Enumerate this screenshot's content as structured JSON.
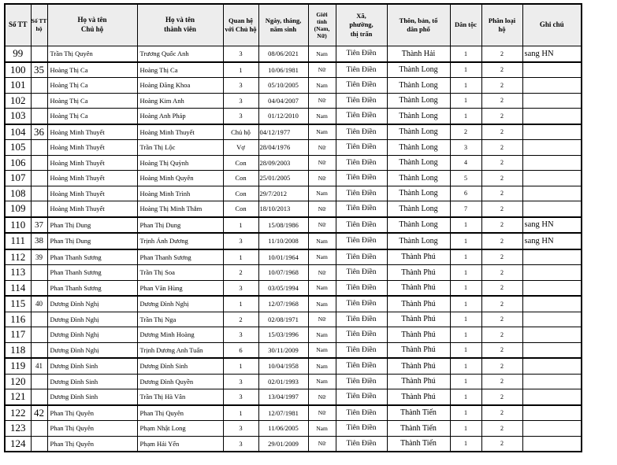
{
  "colors": {
    "header_bg": "#ededed",
    "border": "#000000",
    "text": "#000000",
    "page_bg": "#ffffff"
  },
  "table": {
    "headers": [
      {
        "key": "stt",
        "label": "Số TT"
      },
      {
        "key": "stt_ho",
        "label": "Số TT\nhộ"
      },
      {
        "key": "chu_ho",
        "label": "Họ và tên\nChủ hộ"
      },
      {
        "key": "thanh_vien",
        "label": "Họ và tên\nthành viên"
      },
      {
        "key": "quan_he",
        "label": "Quan hệ\nvới Chủ hộ"
      },
      {
        "key": "ngay_sinh",
        "label": "Ngày, tháng,\nnăm sinh"
      },
      {
        "key": "gioi_tinh",
        "label": "Giới\ntính\n(Nam,\nNữ)"
      },
      {
        "key": "xa",
        "label": "Xã,\nphường,\nthị trấn"
      },
      {
        "key": "thon",
        "label": "Thôn, bản, tổ\ndân phố"
      },
      {
        "key": "dan_toc",
        "label": "Dân tộc"
      },
      {
        "key": "phan_loai",
        "label": "Phân loại\nhộ"
      },
      {
        "key": "ghi_chu",
        "label": "Ghi chú"
      }
    ],
    "rows": [
      {
        "stt": "99",
        "stt_ho": "",
        "chu_ho": "Trần Thị Quyên",
        "thanh_vien": "Trương Quốc Anh",
        "quan_he": "3",
        "ngay_sinh": "08/06/2021",
        "gioi_tinh": "Nam",
        "xa": "Tiên Điền",
        "thon": "Thành Hải",
        "dan_toc": "1",
        "phan_loai": "2",
        "ghi_chu": "sang HN",
        "hh_start": false
      },
      {
        "stt": "100",
        "stt_ho": "35",
        "ho_sz": "lg",
        "chu_ho": "Hoàng Thị Ca",
        "thanh_vien": "Hoàng Thị Ca",
        "quan_he": "1",
        "ngay_sinh": "10/06/1981",
        "gioi_tinh": "Nữ",
        "xa": "Tiên Điền",
        "thon": "Thành Long",
        "dan_toc": "1",
        "phan_loai": "2",
        "ghi_chu": "",
        "hh_start": true
      },
      {
        "stt": "101",
        "stt_ho": "",
        "chu_ho": "Hoàng Thị Ca",
        "thanh_vien": "Hoàng Đăng Khoa",
        "quan_he": "3",
        "ngay_sinh": "05/10/2005",
        "gioi_tinh": "Nam",
        "xa": "Tiên Điền",
        "thon": "Thành Long",
        "dan_toc": "1",
        "phan_loai": "2",
        "ghi_chu": "",
        "hh_start": false
      },
      {
        "stt": "102",
        "stt_ho": "",
        "chu_ho": "Hoàng Thị Ca",
        "thanh_vien": "Hoàng Kim Anh",
        "quan_he": "3",
        "ngay_sinh": "04/04/2007",
        "gioi_tinh": "Nữ",
        "xa": "Tiên Điền",
        "thon": "Thành Long",
        "dan_toc": "1",
        "phan_loai": "2",
        "ghi_chu": "",
        "hh_start": false
      },
      {
        "stt": "103",
        "stt_ho": "",
        "chu_ho": "Hoàng Thị Ca",
        "thanh_vien": "Hoàng Anh Pháp",
        "quan_he": "3",
        "ngay_sinh": "01/12/2010",
        "gioi_tinh": "Nam",
        "xa": "Tiên Điền",
        "thon": "Thành Long",
        "dan_toc": "1",
        "phan_loai": "2",
        "ghi_chu": "",
        "hh_start": false
      },
      {
        "stt": "104",
        "stt_ho": "36",
        "ho_sz": "lg",
        "chu_ho": "Hoàng Minh Thuyết",
        "thanh_vien": "Hoàng Minh Thuyết",
        "quan_he": "Chủ hộ",
        "ngay_sinh": "04/12/1977",
        "date_align": "left",
        "gioi_tinh": "Nam",
        "xa": "Tiên Điền",
        "thon": "Thành Long",
        "dan_toc": "2",
        "phan_loai": "2",
        "ghi_chu": "",
        "hh_start": true
      },
      {
        "stt": "105",
        "stt_ho": "",
        "chu_ho": "Hoàng Minh Thuyết",
        "thanh_vien": "Trần Thị Lộc",
        "quan_he": "Vợ",
        "ngay_sinh": "28/04/1976",
        "date_align": "left",
        "gioi_tinh": "Nữ",
        "xa": "Tiên Điền",
        "thon": "Thành Long",
        "dan_toc": "3",
        "phan_loai": "2",
        "ghi_chu": "",
        "hh_start": false
      },
      {
        "stt": "106",
        "stt_ho": "",
        "chu_ho": "Hoàng Minh Thuyết",
        "thanh_vien": "Hoàng Thị Quỳnh",
        "quan_he": "Con",
        "ngay_sinh": "28/09/2003",
        "date_align": "left",
        "gioi_tinh": "Nữ",
        "xa": "Tiên Điền",
        "thon": "Thành Long",
        "dan_toc": "4",
        "phan_loai": "2",
        "ghi_chu": "",
        "hh_start": false
      },
      {
        "stt": "107",
        "stt_ho": "",
        "chu_ho": "Hoàng Minh Thuyết",
        "thanh_vien": "Hoàng Minh Quyên",
        "quan_he": "Con",
        "ngay_sinh": "25/01/2005",
        "date_align": "left",
        "gioi_tinh": "Nữ",
        "xa": "Tiên Điền",
        "thon": "Thành Long",
        "dan_toc": "5",
        "phan_loai": "2",
        "ghi_chu": "",
        "hh_start": false
      },
      {
        "stt": "108",
        "stt_ho": "",
        "chu_ho": "Hoàng Minh Thuyết",
        "thanh_vien": "Hoàng Minh Trình",
        "quan_he": "Con",
        "ngay_sinh": "29/7/2012",
        "date_align": "left",
        "gioi_tinh": "Nam",
        "xa": "Tiên Điền",
        "thon": "Thành Long",
        "dan_toc": "6",
        "phan_loai": "2",
        "ghi_chu": "",
        "hh_start": false
      },
      {
        "stt": "109",
        "stt_ho": "",
        "chu_ho": "Hoàng Minh Thuyết",
        "thanh_vien": "Hoàng Thị Minh Thắm",
        "quan_he": "Con",
        "ngay_sinh": "18/10/2013",
        "date_align": "left",
        "gioi_tinh": "Nữ",
        "xa": "Tiên Điền",
        "thon": "Thành Long",
        "dan_toc": "7",
        "phan_loai": "2",
        "ghi_chu": "",
        "hh_start": false
      },
      {
        "stt": "110",
        "stt_ho": "37",
        "ho_sz": "md",
        "chu_ho": "Phan Thị Dung",
        "thanh_vien": "Phan Thị Dung",
        "quan_he": "1",
        "ngay_sinh": "15/08/1986",
        "gioi_tinh": "Nữ",
        "xa": "Tiên Điền",
        "thon": "Thành Long",
        "dan_toc": "1",
        "phan_loai": "2",
        "ghi_chu": "sang HN",
        "hh_start": true
      },
      {
        "stt": "111",
        "stt_ho": "38",
        "ho_sz": "md",
        "chu_ho": "Phan Thị Dung",
        "thanh_vien": "Trịnh Ánh Dương",
        "quan_he": "3",
        "ngay_sinh": "11/10/2008",
        "gioi_tinh": "Nam",
        "xa": "Tiên Điền",
        "thon": "Thành Long",
        "dan_toc": "1",
        "phan_loai": "2",
        "ghi_chu": "sang HN",
        "hh_start": true
      },
      {
        "stt": "112",
        "stt_ho": "39",
        "ho_sz": "sm",
        "chu_ho": "Phan Thanh Sương",
        "thanh_vien": "Phan Thanh Sương",
        "quan_he": "1",
        "ngay_sinh": "10/01/1964",
        "gioi_tinh": "Nam",
        "xa": "Tiên Điền",
        "thon": "Thành Phú",
        "dan_toc": "1",
        "phan_loai": "2",
        "ghi_chu": "",
        "hh_start": true
      },
      {
        "stt": "113",
        "stt_ho": "",
        "chu_ho": "Phan Thanh Sương",
        "thanh_vien": "Trần Thị Soa",
        "quan_he": "2",
        "ngay_sinh": "10/07/1968",
        "gioi_tinh": "Nữ",
        "xa": "Tiên Điền",
        "thon": "Thành Phú",
        "dan_toc": "1",
        "phan_loai": "2",
        "ghi_chu": "",
        "hh_start": false
      },
      {
        "stt": "114",
        "stt_ho": "",
        "chu_ho": "Phan Thanh Sương",
        "thanh_vien": "Phan Văn Hùng",
        "quan_he": "3",
        "ngay_sinh": "03/05/1994",
        "gioi_tinh": "Nam",
        "xa": "Tiên Điền",
        "thon": "Thành Phú",
        "dan_toc": "1",
        "phan_loai": "2",
        "ghi_chu": "",
        "hh_start": false
      },
      {
        "stt": "115",
        "stt_ho": "40",
        "ho_sz": "sm",
        "chu_ho": "Dương Đình Nghị",
        "thanh_vien": "Dương Đình Nghị",
        "quan_he": "1",
        "ngay_sinh": "12/07/1968",
        "gioi_tinh": "Nam",
        "xa": "Tiên Điền",
        "thon": "Thành Phú",
        "dan_toc": "1",
        "phan_loai": "2",
        "ghi_chu": "",
        "hh_start": true
      },
      {
        "stt": "116",
        "stt_ho": "",
        "chu_ho": "Dương Đình Nghị",
        "thanh_vien": "Trần Thị Nga",
        "quan_he": "2",
        "ngay_sinh": "02/08/1971",
        "gioi_tinh": "Nữ",
        "xa": "Tiên Điền",
        "thon": "Thành Phú",
        "dan_toc": "1",
        "phan_loai": "2",
        "ghi_chu": "",
        "hh_start": false
      },
      {
        "stt": "117",
        "stt_ho": "",
        "chu_ho": "Dương Đình Nghị",
        "thanh_vien": "Dương Minh Hoàng",
        "quan_he": "3",
        "ngay_sinh": "15/03/1996",
        "gioi_tinh": "Nam",
        "xa": "Tiên Điền",
        "thon": "Thành Phú",
        "dan_toc": "1",
        "phan_loai": "2",
        "ghi_chu": "",
        "hh_start": false
      },
      {
        "stt": "118",
        "stt_ho": "",
        "chu_ho": "Dương Đình Nghị",
        "thanh_vien": "Trịnh Dương Anh Tuấn",
        "quan_he": "6",
        "ngay_sinh": "30/11/2009",
        "gioi_tinh": "Nam",
        "xa": "Tiên Điền",
        "thon": "Thành Phú",
        "dan_toc": "1",
        "phan_loai": "2",
        "ghi_chu": "",
        "hh_start": false
      },
      {
        "stt": "119",
        "stt_ho": "41",
        "ho_sz": "sm",
        "chu_ho": "Dương Đình Sinh",
        "thanh_vien": "Dương Đình Sinh",
        "quan_he": "1",
        "ngay_sinh": "10/04/1958",
        "gioi_tinh": "Nam",
        "xa": "Tiên Điền",
        "thon": "Thành Phú",
        "dan_toc": "1",
        "phan_loai": "2",
        "ghi_chu": "",
        "hh_start": true
      },
      {
        "stt": "120",
        "stt_ho": "",
        "chu_ho": "Dương Đình Sinh",
        "thanh_vien": "Dương Đình Quyền",
        "quan_he": "3",
        "ngay_sinh": "02/01/1993",
        "gioi_tinh": "Nam",
        "xa": "Tiên Điền",
        "thon": "Thành Phú",
        "dan_toc": "1",
        "phan_loai": "2",
        "ghi_chu": "",
        "hh_start": false
      },
      {
        "stt": "121",
        "stt_ho": "",
        "chu_ho": "Dương Đình Sinh",
        "thanh_vien": "Trần Thị Hà Vân",
        "quan_he": "3",
        "ngay_sinh": "13/04/1997",
        "gioi_tinh": "Nữ",
        "xa": "Tiên Điền",
        "thon": "Thành Phú",
        "dan_toc": "1",
        "phan_loai": "2",
        "ghi_chu": "",
        "hh_start": false
      },
      {
        "stt": "122",
        "stt_ho": "42",
        "ho_sz": "lg",
        "chu_ho": "Phan Thị Quyên",
        "thanh_vien": "Phan Thị Quyên",
        "quan_he": "1",
        "ngay_sinh": "12/07/1981",
        "gioi_tinh": "Nữ",
        "xa": "Tiên Điền",
        "thon": "Thành Tiến",
        "dan_toc": "1",
        "phan_loai": "2",
        "ghi_chu": "",
        "hh_start": true
      },
      {
        "stt": "123",
        "stt_ho": "",
        "chu_ho": "Phan Thị Quyên",
        "thanh_vien": "Phạm Nhật Long",
        "quan_he": "3",
        "ngay_sinh": "11/06/2005",
        "gioi_tinh": "Nam",
        "xa": "Tiên Điền",
        "thon": "Thành Tiến",
        "dan_toc": "1",
        "phan_loai": "2",
        "ghi_chu": "",
        "hh_start": false
      },
      {
        "stt": "124",
        "stt_ho": "",
        "chu_ho": "Phan Thị Quyên",
        "thanh_vien": "Phạm Hải Yến",
        "quan_he": "3",
        "ngay_sinh": "29/01/2009",
        "gioi_tinh": "Nữ",
        "xa": "Tiên Điền",
        "thon": "Thành Tiến",
        "dan_toc": "1",
        "phan_loai": "2",
        "ghi_chu": "",
        "hh_start": false
      }
    ]
  }
}
